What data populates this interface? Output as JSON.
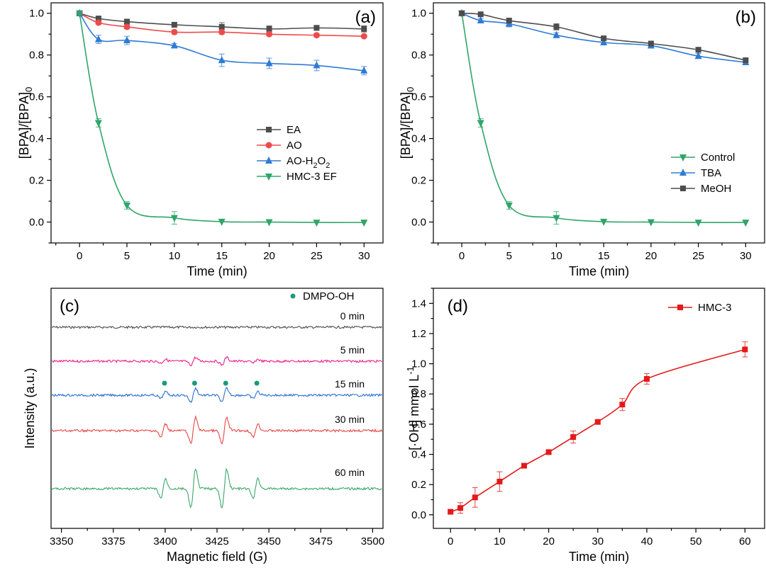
{
  "chart_data": [
    {
      "panel": "(a)",
      "type": "line",
      "xlabel": "Time (min)",
      "ylabel": "[BPA]/[BPA]0",
      "xlim": [
        -3,
        32
      ],
      "ylim": [
        -0.1,
        1.05
      ],
      "xticks": [
        0,
        5,
        10,
        15,
        20,
        25,
        30
      ],
      "yticks": [
        0.0,
        0.2,
        0.4,
        0.6,
        0.8,
        1.0
      ],
      "ytick_labels": [
        "0.0",
        "0.2",
        "0.4",
        "0.6",
        "0.8",
        "1.0"
      ],
      "legend_position": "center-right",
      "x": [
        0,
        2,
        5,
        10,
        15,
        20,
        25,
        30
      ],
      "series": [
        {
          "name": "EA",
          "marker": "square",
          "color": "#4d4d4d",
          "values": [
            1.0,
            0.975,
            0.96,
            0.945,
            0.935,
            0.925,
            0.93,
            0.925
          ],
          "errors": [
            0.005,
            0.008,
            0.012,
            0.012,
            0.02,
            0.015,
            0.012,
            0.015
          ]
        },
        {
          "name": "AO",
          "marker": "circle",
          "color": "#ef4a4a",
          "values": [
            1.0,
            0.955,
            0.935,
            0.91,
            0.91,
            0.9,
            0.895,
            0.89
          ],
          "errors": [
            0.005,
            0.008,
            0.01,
            0.01,
            0.01,
            0.008,
            0.008,
            0.006
          ]
        },
        {
          "name": "AO-H2O2",
          "marker": "triangle-up",
          "color": "#2f7bd4",
          "values": [
            1.0,
            0.875,
            0.87,
            0.845,
            0.775,
            0.76,
            0.75,
            0.725
          ],
          "errors": [
            0.005,
            0.02,
            0.02,
            0.01,
            0.03,
            0.025,
            0.025,
            0.02
          ]
        },
        {
          "name": "HMC-3 EF",
          "marker": "triangle-down",
          "color": "#2fa56a",
          "values": [
            1.0,
            0.475,
            0.08,
            0.02,
            0.002,
            0.0,
            -0.002,
            -0.002
          ],
          "errors": [
            0.005,
            0.02,
            0.018,
            0.03,
            0.003,
            0.003,
            0.003,
            0.003
          ]
        }
      ]
    },
    {
      "panel": "(b)",
      "type": "line",
      "xlabel": "Time (min)",
      "ylabel": "[BPA]/[BPA]0",
      "xlim": [
        -3,
        32
      ],
      "ylim": [
        -0.1,
        1.05
      ],
      "xticks": [
        0,
        5,
        10,
        15,
        20,
        25,
        30
      ],
      "yticks": [
        0.0,
        0.2,
        0.4,
        0.6,
        0.8,
        1.0
      ],
      "ytick_labels": [
        "0.0",
        "0.2",
        "0.4",
        "0.6",
        "0.8",
        "1.0"
      ],
      "legend_position": "center-right",
      "x": [
        0,
        2,
        5,
        10,
        15,
        20,
        25,
        30
      ],
      "series": [
        {
          "name": "Control",
          "marker": "triangle-down",
          "color": "#2fa56a",
          "values": [
            1.0,
            0.475,
            0.08,
            0.02,
            0.002,
            0.0,
            -0.002,
            -0.002
          ],
          "errors": [
            0.005,
            0.02,
            0.018,
            0.03,
            0.003,
            0.003,
            0.003,
            0.003
          ]
        },
        {
          "name": "TBA",
          "marker": "triangle-up",
          "color": "#2f7bd4",
          "values": [
            1.0,
            0.965,
            0.95,
            0.895,
            0.86,
            0.845,
            0.795,
            0.765
          ],
          "errors": [
            0.005,
            0.01,
            0.015,
            0.012,
            0.01,
            0.012,
            0.012,
            0.012
          ]
        },
        {
          "name": "MeOH",
          "marker": "square",
          "color": "#4d4d4d",
          "values": [
            1.0,
            0.995,
            0.965,
            0.935,
            0.88,
            0.855,
            0.825,
            0.775
          ],
          "errors": [
            0.005,
            0.005,
            0.01,
            0.015,
            0.01,
            0.01,
            0.012,
            0.01
          ]
        }
      ]
    },
    {
      "panel": "(c)",
      "type": "line",
      "xlabel": "Magnetic field (G)",
      "ylabel": "Intensity (a.u.)",
      "xlim": [
        3345,
        3505
      ],
      "xticks": [
        3350,
        3375,
        3400,
        3425,
        3450,
        3475,
        3500
      ],
      "legend": {
        "name": "DMPO-OH",
        "color": "#1a9a7a"
      },
      "peak_positions": [
        3399,
        3413.5,
        3428.5,
        3443.5
      ],
      "peak_pattern": [
        1,
        2,
        2,
        1
      ],
      "series": [
        {
          "name": "0 min",
          "color": "#4d4d4d",
          "amplitude": 0.0
        },
        {
          "name": "5 min",
          "color": "#ee1e8c",
          "amplitude": 0.25
        },
        {
          "name": "15 min",
          "color": "#2b6fd6",
          "amplitude": 0.45
        },
        {
          "name": "30 min",
          "color": "#e84646",
          "amplitude": 0.85
        },
        {
          "name": "60 min",
          "color": "#3aa76a",
          "amplitude": 1.25
        }
      ]
    },
    {
      "panel": "(d)",
      "type": "line",
      "xlabel": "Time (min)",
      "ylabel": "[·OH] mmol L-1",
      "xlim": [
        -3.5,
        64
      ],
      "ylim": [
        -0.09,
        1.5
      ],
      "xticks": [
        0,
        10,
        20,
        30,
        40,
        50,
        60
      ],
      "yticks": [
        0.0,
        0.2,
        0.4,
        0.6,
        0.8,
        1.0,
        1.2,
        1.4
      ],
      "ytick_labels": [
        "0.0",
        "0.2",
        "0.4",
        "0.6",
        "0.8",
        "1.0",
        "1.2",
        "1.4"
      ],
      "legend_position": "top-right",
      "x": [
        0,
        2,
        5,
        10,
        15,
        20,
        25,
        30,
        35,
        40,
        60
      ],
      "series": [
        {
          "name": "HMC-3",
          "marker": "square",
          "color": "#e41a1a",
          "values": [
            0.02,
            0.045,
            0.115,
            0.22,
            0.325,
            0.415,
            0.515,
            0.615,
            0.73,
            0.9,
            1.095
          ],
          "errors": [
            0.01,
            0.035,
            0.065,
            0.065,
            0.015,
            0.012,
            0.04,
            0.012,
            0.04,
            0.035,
            0.05
          ]
        }
      ]
    }
  ]
}
